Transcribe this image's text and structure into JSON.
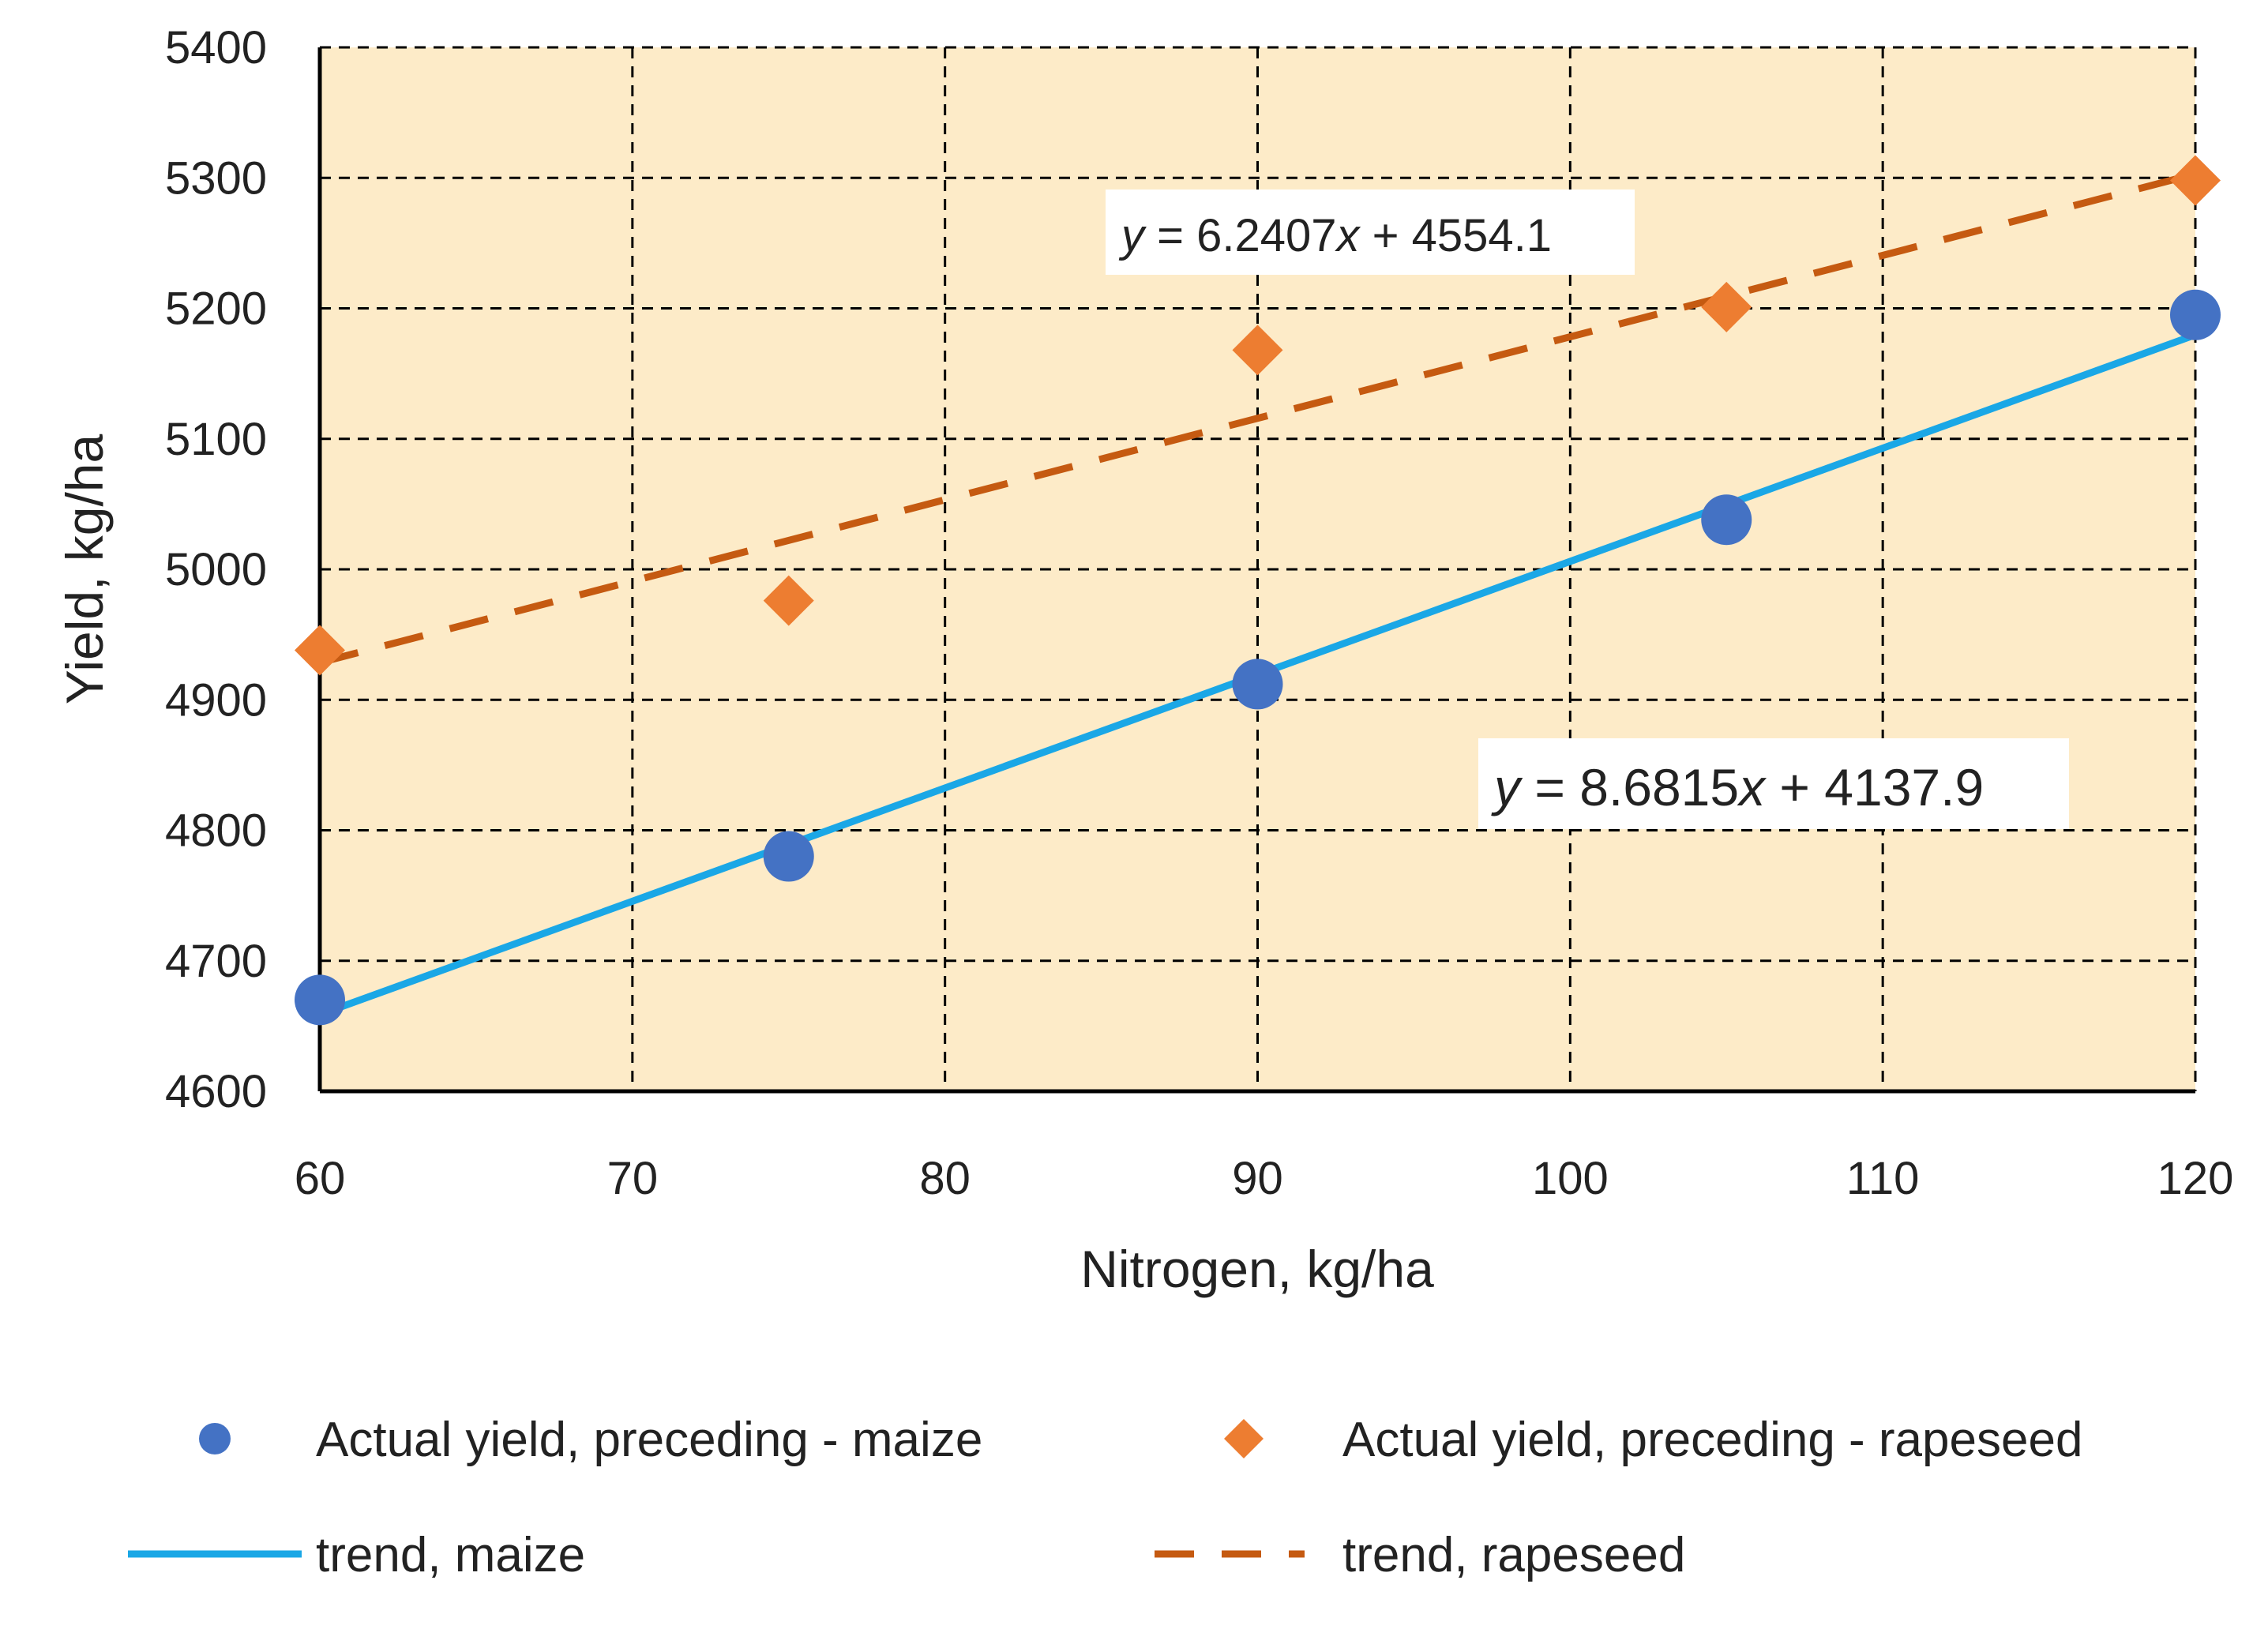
{
  "chart_data": {
    "type": "scatter",
    "title": "",
    "xlabel": "Nitrogen, kg/ha",
    "ylabel": "Yield, kg/ha",
    "xlim": [
      60,
      120
    ],
    "ylim": [
      4600,
      5400
    ],
    "xticks": [
      60,
      70,
      80,
      90,
      100,
      110,
      120
    ],
    "yticks": [
      4600,
      4700,
      4800,
      4900,
      5000,
      5100,
      5200,
      5300,
      5400
    ],
    "grid": true,
    "plot_background": "#fdebc8",
    "legend_position": "bottom",
    "series": [
      {
        "id": "maize",
        "name": "Actual yield, preceding - maize",
        "marker": "circle",
        "color": "#4472c4",
        "x": [
          60,
          75,
          90,
          105,
          120
        ],
        "y": [
          4670,
          4780,
          4912,
          5038,
          5195
        ]
      },
      {
        "id": "rapeseed",
        "name": "Actual yield, preceding - rapeseed",
        "marker": "diamond",
        "color": "#ed7d31",
        "x": [
          60,
          75,
          90,
          105,
          120
        ],
        "y": [
          4938,
          4976,
          5168,
          5201,
          5298
        ]
      }
    ],
    "trendlines": [
      {
        "id": "maize-trend",
        "name": "trend, maize",
        "style": "solid",
        "color": "#1aa7e6",
        "slope": 8.6815,
        "intercept": 4137.9,
        "equation": {
          "pre": "y",
          "mid": " = 8.6815",
          "var": "x",
          "post": " + 4137.9"
        }
      },
      {
        "id": "rapeseed-trend",
        "name": "trend, rapeseed",
        "style": "dashed",
        "color": "#c55a11",
        "slope": 6.2407,
        "intercept": 4554.1,
        "equation": {
          "pre": "y",
          "mid": " = 6.2407",
          "var": "x",
          "post": " + 4554.1"
        }
      }
    ]
  }
}
